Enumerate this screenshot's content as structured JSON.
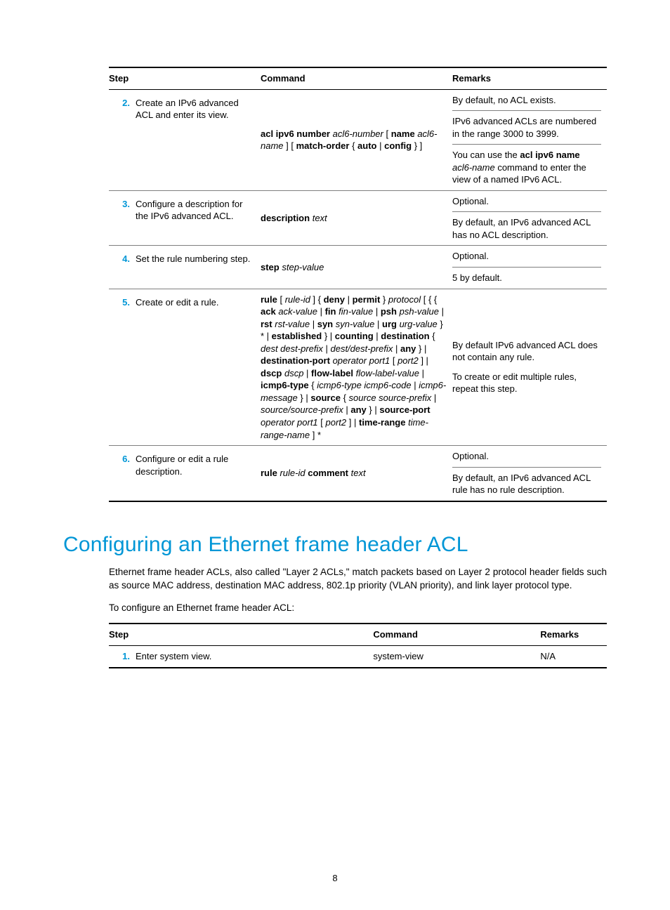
{
  "table1": {
    "headers": {
      "step": "Step",
      "command": "Command",
      "remarks": "Remarks"
    },
    "rows": [
      {
        "num": "2.",
        "step": "Create an IPv6 advanced ACL and enter its view.",
        "command_html": "<span class='b'>acl ipv6 number</span> <span class='i'>acl6-number</span> [ <span class='b'>name</span> <span class='i'>acl6-name</span> ] [ <span class='b'>match-order</span> { <span class='b'>auto</span> | <span class='b'>config</span> } ]",
        "remarks_html": "By default, no ACL exists.<div class='rem-inner'>IPv6 advanced ACLs are numbered in the range 3000 to 3999.</div><div class='rem-inner'>You can use the <span class='b'>acl ipv6 name</span> <span class='i'>acl6-name</span> command to enter the view of a named IPv6 ACL.</div>"
      },
      {
        "num": "3.",
        "step": "Configure a description for the IPv6 advanced ACL.",
        "command_html": "<span class='b'>description</span> <span class='i'>text</span>",
        "remarks_html": "Optional.<div class='rem-inner'>By default, an IPv6 advanced ACL has no ACL description.</div>"
      },
      {
        "num": "4.",
        "step": "Set the rule numbering step.",
        "command_html": "<span class='b'>step</span> <span class='i'>step-value</span>",
        "remarks_html": "Optional.<div class='rem-inner'>5 by default.</div>"
      },
      {
        "num": "5.",
        "step": "Create or edit a rule.",
        "command_html": "<span class='b'>rule</span> [ <span class='i'>rule-id</span> ] { <span class='b'>deny</span> | <span class='b'>permit</span> } <span class='i'>protocol</span> [ { { <span class='b'>ack</span> <span class='i'>ack-value</span> | <span class='b'>fin</span> <span class='i'>fin-value</span> | <span class='b'>psh</span> <span class='i'>psh-value</span> | <span class='b'>rst</span> <span class='i'>rst-value</span> | <span class='b'>syn</span> <span class='i'>syn-value</span> | <span class='b'>urg</span> <span class='i'>urg-value</span> } * | <span class='b'>established</span> } | <span class='b'>counting</span> | <span class='b'>destination</span> { <span class='i'>dest dest-prefix</span> | <span class='i'>dest/dest-prefix</span> | <span class='b'>any</span> } | <span class='b'>destination-port</span> <span class='i'>operator port1</span> [ <span class='i'>port2</span> ] | <span class='b'>dscp</span> <span class='i'>dscp</span> | <span class='b'>flow-label</span> <span class='i'>flow-label-value</span> | <span class='b'>icmp6-type</span> { <span class='i'>icmp6-type icmp6-code</span> | <span class='i'>icmp6-message</span> } | <span class='b'>source</span> { <span class='i'>source source-prefix</span> | <span class='i'>source/source-prefix</span> | <span class='b'>any</span> } | <span class='b'>source-port</span> <span class='i'>operator port1</span> [ <span class='i'>port2</span> ] | <span class='b'>time-range</span> <span class='i'>time-range-name</span> ] *",
        "remarks_html": "By default IPv6 advanced ACL does not contain any rule.<div style='height:10px'></div>To create or edit multiple rules, repeat this step."
      },
      {
        "num": "6.",
        "step": "Configure or edit a rule description.",
        "command_html": "<span class='b'>rule</span> <span class='i'>rule-id</span> <span class='b'>comment</span> <span class='i'>text</span>",
        "remarks_html": "Optional.<div class='rem-inner'>By default, an IPv6 advanced ACL rule has no rule description.</div>"
      }
    ]
  },
  "section_heading": "Configuring an Ethernet frame header ACL",
  "para1": "Ethernet frame header ACLs, also called \"Layer 2 ACLs,\" match packets based on Layer 2 protocol header fields such as source MAC address, destination MAC address, 802.1p priority (VLAN priority), and link layer protocol type.",
  "para2": "To configure an Ethernet frame header ACL:",
  "table2": {
    "headers": {
      "step": "Step",
      "command": "Command",
      "remarks": "Remarks"
    },
    "rows": [
      {
        "num": "1.",
        "step": "Enter system view.",
        "command": "system-view",
        "remarks": "N/A"
      }
    ]
  },
  "page_number": "8"
}
